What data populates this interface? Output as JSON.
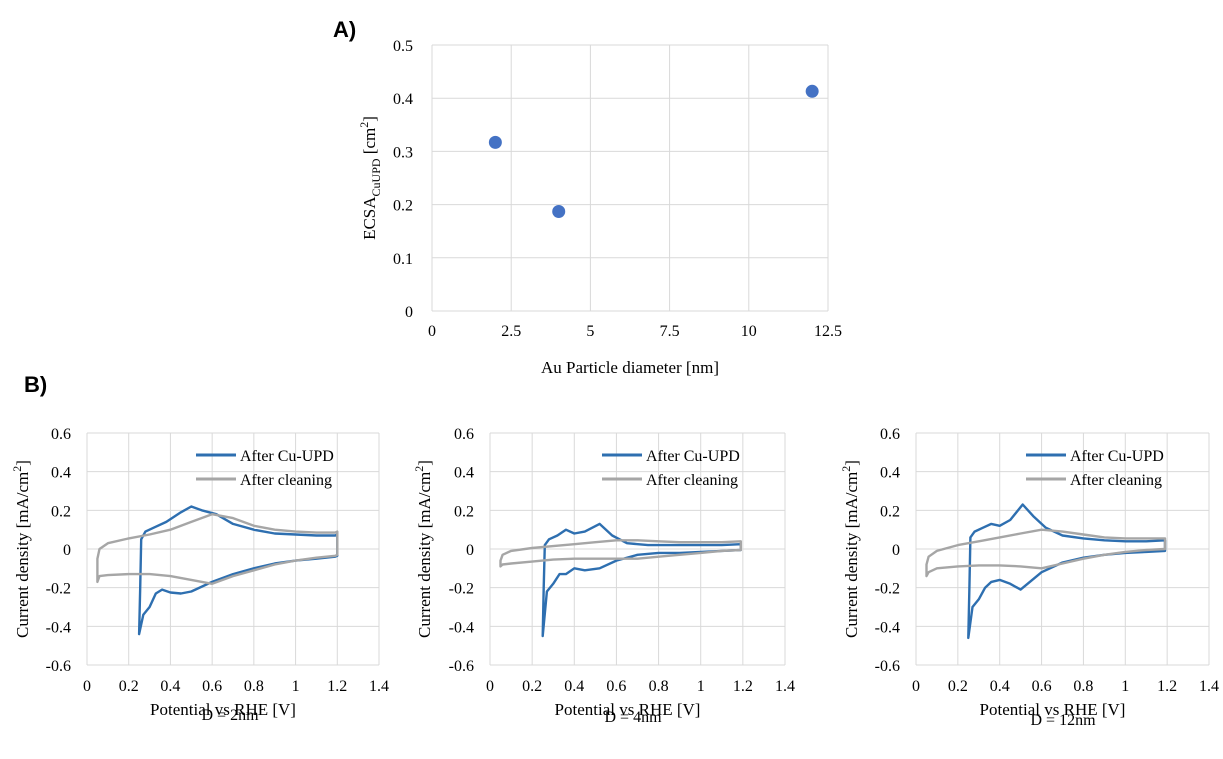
{
  "panel_labels": {
    "a": "A)",
    "b": "B)"
  },
  "chart_data": [
    {
      "id": "A",
      "type": "scatter",
      "xlabel": "Au Particle diameter [nm]",
      "ylabel_main": "ECSA",
      "ylabel_sub": "CuUPD",
      "ylabel_unit_pre": " [cm",
      "ylabel_unit_sup": "2",
      "ylabel_unit_post": "]",
      "xlim": [
        0,
        12.5
      ],
      "ylim": [
        0,
        0.5
      ],
      "xticks": [
        "0",
        "2.5",
        "5",
        "7.5",
        "10",
        "12.5"
      ],
      "yticks": [
        "0",
        "0.1",
        "0.2",
        "0.3",
        "0.4",
        "0.5"
      ],
      "grid": true,
      "marker_color": "#4472c4",
      "points": [
        {
          "x": 2,
          "y": 0.317
        },
        {
          "x": 4,
          "y": 0.187
        },
        {
          "x": 12,
          "y": 0.413
        }
      ]
    },
    {
      "id": "B1",
      "type": "line",
      "caption": "D = 2nm",
      "xlabel": "Potential vs RHE [V]",
      "ylabel": "Current density [mA/cm",
      "ylabel_sup": "2",
      "ylabel_post": "]",
      "xlim": [
        0,
        1.4
      ],
      "ylim": [
        -0.6,
        0.6
      ],
      "xticks": [
        "0",
        "0.2",
        "0.4",
        "0.6",
        "0.8",
        "1",
        "1.2",
        "1.4"
      ],
      "yticks": [
        "-0.6",
        "-0.4",
        "-0.2",
        "0",
        "0.2",
        "0.4",
        "0.6"
      ],
      "grid": true,
      "legend_position": "top-right",
      "series": [
        {
          "name": "After Cu-UPD",
          "color": "#2e6fb0",
          "x": [
            0.25,
            0.255,
            0.26,
            0.28,
            0.32,
            0.38,
            0.45,
            0.5,
            0.55,
            0.62,
            0.7,
            0.8,
            0.9,
            1.0,
            1.1,
            1.19,
            1.2,
            1.2,
            1.19,
            1.1,
            1.0,
            0.9,
            0.8,
            0.7,
            0.6,
            0.5,
            0.45,
            0.4,
            0.36,
            0.33,
            0.3,
            0.27,
            0.25
          ],
          "y": [
            -0.44,
            -0.2,
            0.05,
            0.09,
            0.11,
            0.14,
            0.19,
            0.22,
            0.2,
            0.18,
            0.13,
            0.1,
            0.08,
            0.075,
            0.07,
            0.07,
            0.075,
            -0.035,
            -0.04,
            -0.05,
            -0.06,
            -0.075,
            -0.1,
            -0.13,
            -0.17,
            -0.22,
            -0.23,
            -0.225,
            -0.21,
            -0.23,
            -0.3,
            -0.34,
            -0.44
          ]
        },
        {
          "name": "After cleaning",
          "color": "#a6a6a6",
          "x": [
            0.05,
            0.06,
            0.1,
            0.2,
            0.3,
            0.4,
            0.5,
            0.6,
            0.7,
            0.8,
            0.9,
            1.0,
            1.1,
            1.19,
            1.2,
            1.2,
            1.19,
            1.1,
            1.0,
            0.9,
            0.8,
            0.7,
            0.6,
            0.5,
            0.4,
            0.3,
            0.2,
            0.1,
            0.06,
            0.05,
            0.05
          ],
          "y": [
            -0.05,
            0.0,
            0.03,
            0.055,
            0.075,
            0.1,
            0.14,
            0.18,
            0.16,
            0.12,
            0.1,
            0.09,
            0.085,
            0.085,
            0.09,
            -0.03,
            -0.035,
            -0.045,
            -0.06,
            -0.08,
            -0.11,
            -0.14,
            -0.18,
            -0.16,
            -0.14,
            -0.13,
            -0.13,
            -0.135,
            -0.14,
            -0.17,
            -0.05
          ]
        }
      ]
    },
    {
      "id": "B2",
      "type": "line",
      "caption": "D = 4nm",
      "xlabel": "Potential vs RHE [V]",
      "ylabel": "Current density [mA/cm",
      "ylabel_sup": "2",
      "ylabel_post": "]",
      "xlim": [
        0,
        1.4
      ],
      "ylim": [
        -0.6,
        0.6
      ],
      "xticks": [
        "0",
        "0.2",
        "0.4",
        "0.6",
        "0.8",
        "1",
        "1.2",
        "1.4"
      ],
      "yticks": [
        "-0.6",
        "-0.4",
        "-0.2",
        "0",
        "0.2",
        "0.4",
        "0.6"
      ],
      "grid": true,
      "legend_position": "top-right",
      "series": [
        {
          "name": "After Cu-UPD",
          "color": "#2e6fb0",
          "x": [
            0.25,
            0.255,
            0.26,
            0.28,
            0.32,
            0.36,
            0.4,
            0.45,
            0.52,
            0.58,
            0.65,
            0.75,
            0.9,
            1.0,
            1.1,
            1.19,
            1.19,
            1.1,
            1.0,
            0.9,
            0.8,
            0.7,
            0.6,
            0.52,
            0.45,
            0.4,
            0.36,
            0.33,
            0.3,
            0.27,
            0.25
          ],
          "y": [
            -0.45,
            -0.2,
            0.02,
            0.05,
            0.07,
            0.1,
            0.08,
            0.09,
            0.13,
            0.07,
            0.03,
            0.02,
            0.02,
            0.02,
            0.02,
            0.025,
            -0.005,
            -0.01,
            -0.015,
            -0.02,
            -0.02,
            -0.03,
            -0.06,
            -0.1,
            -0.11,
            -0.1,
            -0.13,
            -0.13,
            -0.18,
            -0.22,
            -0.45
          ]
        },
        {
          "name": "After cleaning",
          "color": "#a6a6a6",
          "x": [
            0.05,
            0.06,
            0.1,
            0.2,
            0.3,
            0.4,
            0.5,
            0.6,
            0.7,
            0.8,
            0.9,
            1.0,
            1.1,
            1.19,
            1.19,
            1.1,
            1.0,
            0.9,
            0.8,
            0.7,
            0.6,
            0.5,
            0.4,
            0.3,
            0.2,
            0.1,
            0.06,
            0.05,
            0.05
          ],
          "y": [
            -0.06,
            -0.03,
            -0.01,
            0.005,
            0.015,
            0.025,
            0.035,
            0.045,
            0.045,
            0.04,
            0.035,
            0.035,
            0.035,
            0.04,
            -0.005,
            -0.01,
            -0.02,
            -0.03,
            -0.04,
            -0.05,
            -0.05,
            -0.05,
            -0.05,
            -0.055,
            -0.065,
            -0.075,
            -0.08,
            -0.09,
            -0.06
          ]
        }
      ]
    },
    {
      "id": "B3",
      "type": "line",
      "caption": "D = 12nm",
      "xlabel": "Potential vs RHE [V]",
      "ylabel": "Current density [mA/cm",
      "ylabel_sup": "2",
      "ylabel_post": "]",
      "xlim": [
        0,
        1.4
      ],
      "ylim": [
        -0.6,
        0.6
      ],
      "xticks": [
        "0",
        "0.2",
        "0.4",
        "0.6",
        "0.8",
        "1",
        "1.2",
        "1.4"
      ],
      "yticks": [
        "-0.6",
        "-0.4",
        "-0.2",
        "0",
        "0.2",
        "0.4",
        "0.6"
      ],
      "grid": true,
      "legend_position": "top-right",
      "series": [
        {
          "name": "After Cu-UPD",
          "color": "#2e6fb0",
          "x": [
            0.25,
            0.255,
            0.26,
            0.28,
            0.32,
            0.36,
            0.4,
            0.45,
            0.51,
            0.56,
            0.62,
            0.7,
            0.8,
            0.9,
            1.0,
            1.1,
            1.19,
            1.19,
            1.1,
            1.0,
            0.9,
            0.8,
            0.7,
            0.6,
            0.5,
            0.45,
            0.4,
            0.36,
            0.33,
            0.3,
            0.27,
            0.25
          ],
          "y": [
            -0.46,
            -0.2,
            0.06,
            0.09,
            0.11,
            0.13,
            0.12,
            0.15,
            0.23,
            0.17,
            0.11,
            0.07,
            0.055,
            0.045,
            0.04,
            0.04,
            0.045,
            -0.01,
            -0.015,
            -0.02,
            -0.03,
            -0.045,
            -0.07,
            -0.12,
            -0.21,
            -0.18,
            -0.16,
            -0.17,
            -0.2,
            -0.26,
            -0.3,
            -0.46
          ]
        },
        {
          "name": "After cleaning",
          "color": "#a6a6a6",
          "x": [
            0.05,
            0.06,
            0.1,
            0.2,
            0.3,
            0.4,
            0.5,
            0.6,
            0.7,
            0.8,
            0.9,
            1.0,
            1.1,
            1.19,
            1.19,
            1.1,
            1.0,
            0.9,
            0.8,
            0.7,
            0.6,
            0.5,
            0.4,
            0.3,
            0.2,
            0.1,
            0.06,
            0.05,
            0.05
          ],
          "y": [
            -0.08,
            -0.04,
            -0.01,
            0.02,
            0.04,
            0.06,
            0.08,
            0.1,
            0.09,
            0.075,
            0.06,
            0.055,
            0.055,
            0.055,
            0.0,
            -0.005,
            -0.015,
            -0.03,
            -0.05,
            -0.075,
            -0.1,
            -0.09,
            -0.085,
            -0.085,
            -0.09,
            -0.1,
            -0.12,
            -0.14,
            -0.08
          ]
        }
      ]
    }
  ]
}
